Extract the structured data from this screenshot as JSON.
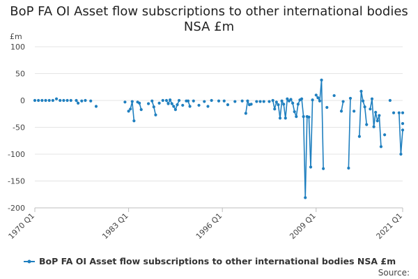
{
  "chart_data": {
    "type": "line",
    "title": "BoP FA OI Asset flow subscriptions to other international bodies NSA £m",
    "ylabel": "£m",
    "xlabel": "",
    "source": "Source:",
    "legend": {
      "label": "BoP FA OI Asset flow subscriptions to other international bodies NSA £m",
      "position": "bottom"
    },
    "ylim": [
      -200,
      100
    ],
    "yticks": [
      "100",
      "50",
      "0",
      "-50",
      "-100",
      "-150",
      "-200"
    ],
    "ytick_values": [
      100,
      50,
      0,
      -50,
      -100,
      -150,
      -200
    ],
    "xlim": [
      1970,
      2021
    ],
    "xticks": [
      "1970 Q1",
      "1983 Q1",
      "1996 Q1",
      "2009 Q1",
      "2021 Q1"
    ],
    "xtick_values": [
      1970,
      1983,
      1996,
      2009,
      2021
    ],
    "colors": {
      "series": "#1f7fbf",
      "grid": "#e4e4e4",
      "axis": "#bdbdbd",
      "text": "#444444"
    },
    "series": [
      {
        "name": "BoP FA OI Asset flow subscriptions to other international bodies NSA £m",
        "points": [
          [
            1970.0,
            0
          ],
          [
            1970.5,
            0
          ],
          [
            1971.0,
            0
          ],
          [
            1971.5,
            0
          ],
          [
            1972.0,
            0
          ],
          [
            1972.5,
            0
          ],
          [
            1973.0,
            3
          ],
          [
            1973.5,
            0
          ],
          [
            1974.0,
            0
          ],
          [
            1974.5,
            0
          ],
          [
            1975.0,
            0
          ],
          [
            1975.75,
            0
          ],
          [
            1976.0,
            -5
          ],
          [
            1976.5,
            -1
          ],
          [
            1977.0,
            0
          ],
          [
            1977.75,
            -1
          ],
          [
            1978.5,
            -11
          ],
          [
            1982.5,
            -3
          ],
          [
            1983.0,
            -20
          ],
          [
            1983.25,
            -16
          ],
          [
            1983.5,
            -2
          ],
          [
            1983.75,
            -38
          ],
          [
            1984.25,
            -3
          ],
          [
            1984.5,
            -5
          ],
          [
            1984.75,
            -17
          ],
          [
            1985.75,
            -6
          ],
          [
            1986.25,
            -1
          ],
          [
            1986.5,
            -12
          ],
          [
            1986.75,
            -27
          ],
          [
            1987.25,
            -5
          ],
          [
            1987.75,
            0
          ],
          [
            1988.25,
            0
          ],
          [
            1988.5,
            -6
          ],
          [
            1988.75,
            1
          ],
          [
            1989.0,
            -6
          ],
          [
            1989.25,
            -11
          ],
          [
            1989.5,
            -17
          ],
          [
            1989.75,
            -8
          ],
          [
            1990.0,
            0
          ],
          [
            1990.5,
            -9
          ],
          [
            1991.0,
            -1
          ],
          [
            1991.25,
            -1
          ],
          [
            1991.5,
            -11
          ],
          [
            1992.0,
            -1
          ],
          [
            1992.75,
            -9
          ],
          [
            1993.5,
            -2
          ],
          [
            1994.0,
            -11
          ],
          [
            1994.5,
            0
          ],
          [
            1995.5,
            -1
          ],
          [
            1996.25,
            -1
          ],
          [
            1996.75,
            -8
          ],
          [
            1997.75,
            -2
          ],
          [
            1998.75,
            -1
          ],
          [
            1999.25,
            -24
          ],
          [
            1999.5,
            -1
          ],
          [
            1999.75,
            -8
          ],
          [
            2000.0,
            -7
          ],
          [
            2000.75,
            -2
          ],
          [
            2001.25,
            -2
          ],
          [
            2001.75,
            -2
          ],
          [
            2002.5,
            -2
          ],
          [
            2003.0,
            0
          ],
          [
            2003.25,
            -16
          ],
          [
            2003.5,
            -3
          ],
          [
            2003.75,
            -8
          ],
          [
            2004.0,
            -33
          ],
          [
            2004.25,
            -1
          ],
          [
            2004.5,
            -7
          ],
          [
            2004.75,
            -33
          ],
          [
            2005.0,
            3
          ],
          [
            2005.25,
            -1
          ],
          [
            2005.5,
            2
          ],
          [
            2005.75,
            -5
          ],
          [
            2006.0,
            -21
          ],
          [
            2006.25,
            -30
          ],
          [
            2006.5,
            -7
          ],
          [
            2006.75,
            1
          ],
          [
            2007.0,
            3
          ],
          [
            2007.25,
            -30
          ],
          [
            2007.5,
            -181
          ],
          [
            2007.75,
            -30
          ],
          [
            2008.0,
            -31
          ],
          [
            2008.25,
            -124
          ],
          [
            2008.5,
            1
          ],
          [
            2009.0,
            10
          ],
          [
            2009.25,
            5
          ],
          [
            2009.5,
            -1
          ],
          [
            2009.75,
            38
          ],
          [
            2010.0,
            -127
          ],
          [
            2010.5,
            -13
          ],
          [
            2011.5,
            9
          ],
          [
            2012.5,
            -20
          ],
          [
            2012.75,
            -2
          ],
          [
            2013.5,
            -126
          ],
          [
            2013.75,
            4
          ],
          [
            2014.25,
            -20
          ],
          [
            2015.0,
            -67
          ],
          [
            2015.25,
            17
          ],
          [
            2015.5,
            -1
          ],
          [
            2015.75,
            -12
          ],
          [
            2016.0,
            -45
          ],
          [
            2016.5,
            -16
          ],
          [
            2016.75,
            3
          ],
          [
            2017.0,
            -49
          ],
          [
            2017.25,
            -22
          ],
          [
            2017.5,
            -38
          ],
          [
            2017.75,
            -28
          ],
          [
            2018.0,
            -86
          ],
          [
            2018.5,
            -64
          ],
          [
            2019.25,
            0
          ],
          [
            2019.75,
            -23
          ],
          [
            2020.5,
            -23
          ],
          [
            2020.75,
            -100
          ],
          [
            2021.0,
            -55
          ],
          [
            2021.5,
            -43
          ],
          [
            2022.0,
            -23
          ]
        ]
      }
    ]
  }
}
